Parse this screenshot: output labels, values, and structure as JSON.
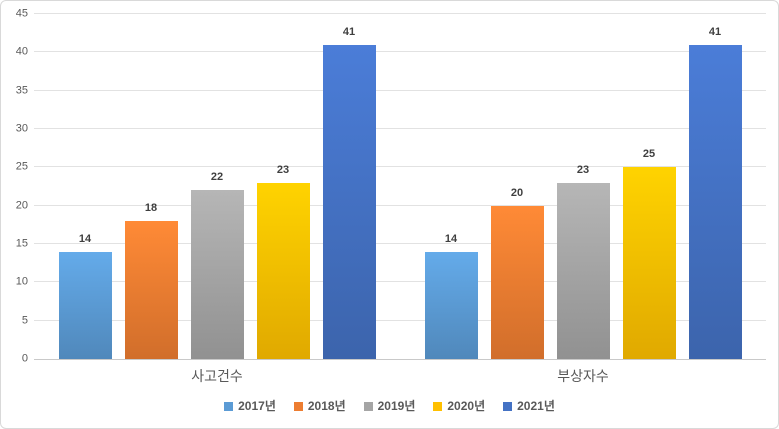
{
  "chart_data": {
    "type": "bar",
    "title": "",
    "categories": [
      "사고건수",
      "부상자수"
    ],
    "series": [
      {
        "name": "2017년",
        "color": "#5B9BD5",
        "values": [
          14,
          14
        ]
      },
      {
        "name": "2018년",
        "color": "#ED7D31",
        "values": [
          18,
          20
        ]
      },
      {
        "name": "2019년",
        "color": "#A5A5A5",
        "values": [
          22,
          23
        ]
      },
      {
        "name": "2020년",
        "color": "#FFC000",
        "values": [
          23,
          25
        ]
      },
      {
        "name": "2021년",
        "color": "#4472C4",
        "values": [
          41,
          41
        ]
      }
    ],
    "ylim": [
      0,
      45
    ],
    "yticks": [
      0,
      5,
      10,
      15,
      20,
      25,
      30,
      35,
      40,
      45
    ],
    "grid": true,
    "value_labels": true,
    "legend_position": "bottom",
    "colors": {
      "grid": "#E2E2E2",
      "axis": "#C9C9C9",
      "tick_text": "#595959",
      "value_text": "#3F3F3F",
      "category_text": "#595959",
      "legend_text": "#595959",
      "frame_border": "#D9D9D9"
    }
  }
}
